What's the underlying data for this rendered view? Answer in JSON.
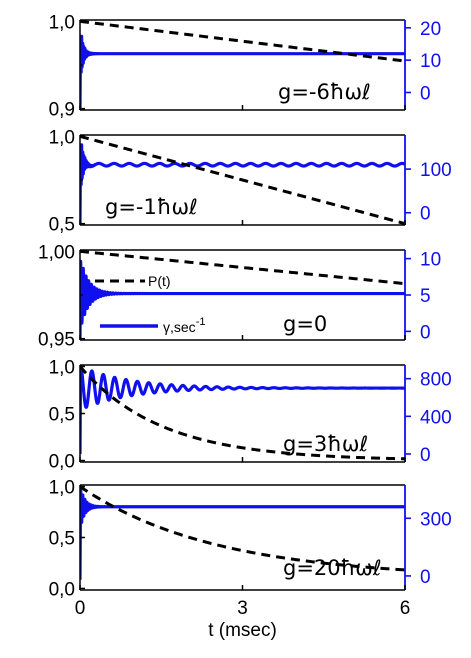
{
  "chart_data": {
    "type": "line",
    "x_range": [
      0,
      6
    ],
    "x_ticks": [
      "0",
      "3",
      "6"
    ],
    "xlabel": "t (msec)",
    "colors": {
      "P": "#000000",
      "gamma": "#1010ee"
    },
    "legend": {
      "p_label": "P(t)",
      "gamma_label": "γ,sec",
      "gamma_sup": "-1",
      "placement": "inside-panel-3"
    },
    "panels": [
      {
        "label": "g=-6ħωℓ",
        "left_range": [
          0.9,
          1.0
        ],
        "left_ticks": [
          "1,0",
          "0,9"
        ],
        "right_range": [
          -5,
          22
        ],
        "right_ticks": [
          "20",
          "10",
          "0"
        ],
        "P": {
          "start": 1.0,
          "end": 0.9545,
          "shape": "linear"
        },
        "gamma": {
          "steady": 12.0,
          "dip": -5,
          "peak": 20,
          "damping_ms": 0.05,
          "period_ms": 0.02
        }
      },
      {
        "label": "g=-1ħωℓ",
        "left_range": [
          0.5,
          1.0
        ],
        "left_ticks": [
          "1,0",
          "0,5"
        ],
        "right_range": [
          -25,
          175
        ],
        "right_ticks": [
          "100",
          "0"
        ],
        "P": {
          "start": 1.0,
          "end": 0.5,
          "shape": "linear"
        },
        "gamma": {
          "steady": 110,
          "dip": -25,
          "peak": 175,
          "damping_ms": 0.05,
          "period_ms": 0.02,
          "ripple_amp": 3,
          "ripple_period_ms": 0.28
        }
      },
      {
        "label": "g=0",
        "left_range": [
          0.95,
          1.0
        ],
        "left_ticks": [
          "1,00",
          "0,95"
        ],
        "right_range": [
          -1,
          11
        ],
        "right_ticks": [
          "10",
          "5",
          "0"
        ],
        "P": {
          "start": 1.0,
          "end": 0.9815,
          "shape": "linear"
        },
        "gamma": {
          "steady": 5.2,
          "dip": -1,
          "peak": 10,
          "damping_ms": 0.15,
          "period_ms": 0.05
        }
      },
      {
        "label": "g=3ħωℓ",
        "left_range": [
          0.0,
          1.0
        ],
        "left_ticks": [
          "1,0",
          "0,5",
          "0,0"
        ],
        "right_range": [
          -70,
          930
        ],
        "right_ticks": [
          "800",
          "400",
          "0"
        ],
        "P": {
          "start": 1.0,
          "end": 0.0,
          "shape": "decay",
          "tau_ms": 1.5
        },
        "gamma": {
          "steady": 700,
          "dip": 0,
          "peak": 930,
          "damping_ms": 0.9,
          "period_ms": 0.21
        }
      },
      {
        "label": "g=20ħωℓ",
        "left_range": [
          0.0,
          1.0
        ],
        "left_ticks": [
          "1,0",
          "0,5",
          "0,0"
        ],
        "right_range": [
          -65,
          465
        ],
        "right_ticks": [
          "300",
          "0"
        ],
        "P": {
          "start": 1.0,
          "end": 0.1,
          "shape": "decay",
          "tau_ms": 2.5
        },
        "gamma": {
          "steady": 360,
          "dip": -20,
          "peak": 465,
          "damping_ms": 0.08,
          "period_ms": 0.04
        }
      }
    ]
  }
}
